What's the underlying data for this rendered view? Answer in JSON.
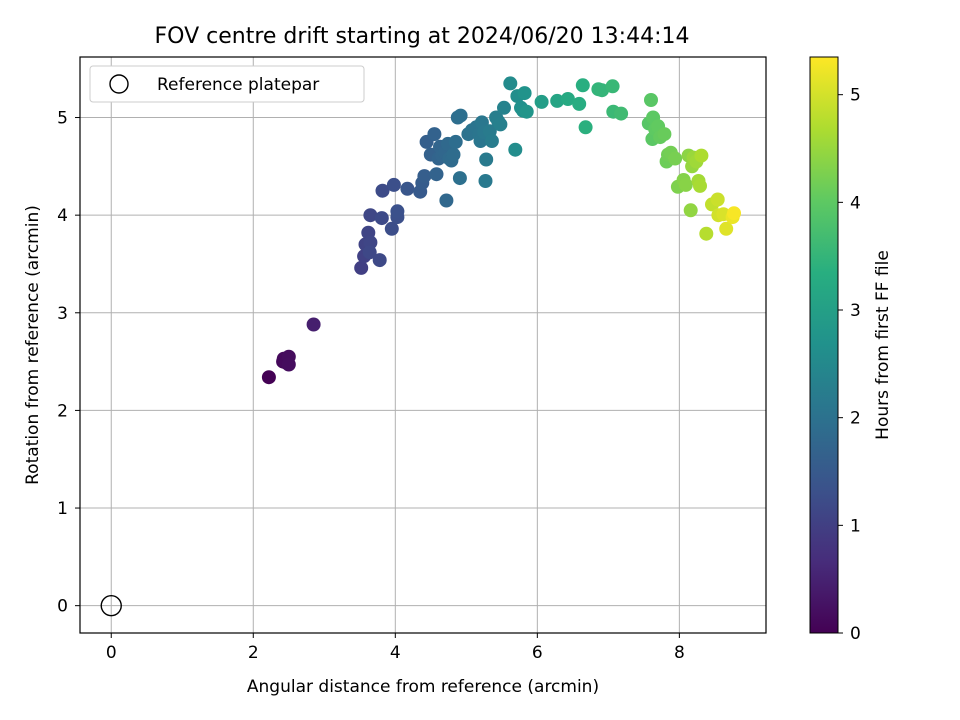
{
  "chart_data": {
    "type": "scatter",
    "title": "FOV centre drift starting at 2024/06/20 13:44:14",
    "xlabel": "Angular distance from reference (arcmin)",
    "ylabel": "Rotation from reference (arcmin)",
    "xlim": [
      -0.44,
      9.22
    ],
    "ylim": [
      -0.28,
      5.62
    ],
    "xticks": [
      0,
      2,
      4,
      6,
      8
    ],
    "yticks": [
      0,
      1,
      2,
      3,
      4,
      5
    ],
    "grid": true,
    "legend": {
      "placement": "top-left",
      "entries": [
        "Reference platepar"
      ]
    },
    "colorbar": {
      "label": "Hours from first FF file",
      "range": [
        0,
        5.35
      ],
      "ticks": [
        0,
        1,
        2,
        3,
        4,
        5
      ],
      "colormap": "viridis"
    },
    "reference": {
      "name": "Reference platepar",
      "x": 0,
      "y": 0,
      "marker": "open-circle"
    },
    "points": [
      [
        2.22,
        2.34,
        0.0
      ],
      [
        2.42,
        2.5,
        0.1
      ],
      [
        2.43,
        2.53,
        0.12
      ],
      [
        2.46,
        2.49,
        0.14
      ],
      [
        2.5,
        2.55,
        0.16
      ],
      [
        2.5,
        2.47,
        0.18
      ],
      [
        2.85,
        2.88,
        0.45
      ],
      [
        3.52,
        3.46,
        1.0
      ],
      [
        3.56,
        3.58,
        1.03
      ],
      [
        3.58,
        3.7,
        1.06
      ],
      [
        3.62,
        3.82,
        1.09
      ],
      [
        3.65,
        3.72,
        1.12
      ],
      [
        3.65,
        4.0,
        1.14
      ],
      [
        3.64,
        3.62,
        1.16
      ],
      [
        3.78,
        3.54,
        1.18
      ],
      [
        3.81,
        3.97,
        1.2
      ],
      [
        3.82,
        4.25,
        1.22
      ],
      [
        3.95,
        3.86,
        1.26
      ],
      [
        3.98,
        4.31,
        1.28
      ],
      [
        4.03,
        3.98,
        1.3
      ],
      [
        4.03,
        4.04,
        1.32
      ],
      [
        4.17,
        4.27,
        1.42
      ],
      [
        4.35,
        4.24,
        1.5
      ],
      [
        4.38,
        4.33,
        1.55
      ],
      [
        4.41,
        4.4,
        1.58
      ],
      [
        4.44,
        4.75,
        1.6
      ],
      [
        4.5,
        4.62,
        1.65
      ],
      [
        4.55,
        4.83,
        1.68
      ],
      [
        4.58,
        4.42,
        1.7
      ],
      [
        4.61,
        4.58,
        1.72
      ],
      [
        4.63,
        4.7,
        1.74
      ],
      [
        4.66,
        4.61,
        1.76
      ],
      [
        4.7,
        4.64,
        1.78
      ],
      [
        4.72,
        4.15,
        1.8
      ],
      [
        4.74,
        4.73,
        1.82
      ],
      [
        4.76,
        4.58,
        1.84
      ],
      [
        4.79,
        4.56,
        1.86
      ],
      [
        4.82,
        4.62,
        1.88
      ],
      [
        4.85,
        4.75,
        1.9
      ],
      [
        4.88,
        5.0,
        1.93
      ],
      [
        4.92,
        5.02,
        1.95
      ],
      [
        4.91,
        4.38,
        1.97
      ],
      [
        5.03,
        4.83,
        2.0
      ],
      [
        5.08,
        4.87,
        2.03
      ],
      [
        5.14,
        4.9,
        2.06
      ],
      [
        5.18,
        4.83,
        2.08
      ],
      [
        5.2,
        4.76,
        2.1
      ],
      [
        5.22,
        4.95,
        2.12
      ],
      [
        5.25,
        4.85,
        2.14
      ],
      [
        5.27,
        4.35,
        2.16
      ],
      [
        5.28,
        4.57,
        2.18
      ],
      [
        5.33,
        4.86,
        2.2
      ],
      [
        5.36,
        4.76,
        2.22
      ],
      [
        5.42,
        5.0,
        2.26
      ],
      [
        5.45,
        4.96,
        2.28
      ],
      [
        5.48,
        4.93,
        2.3
      ],
      [
        5.53,
        5.1,
        2.36
      ],
      [
        5.62,
        5.35,
        2.55
      ],
      [
        5.69,
        4.67,
        2.58
      ],
      [
        5.72,
        5.22,
        2.62
      ],
      [
        5.77,
        5.1,
        2.65
      ],
      [
        5.8,
        5.07,
        2.68
      ],
      [
        5.82,
        5.25,
        2.72
      ],
      [
        5.85,
        5.06,
        2.76
      ],
      [
        6.06,
        5.16,
        2.95
      ],
      [
        6.28,
        5.17,
        3.12
      ],
      [
        6.43,
        5.19,
        3.22
      ],
      [
        6.59,
        5.14,
        3.3
      ],
      [
        6.64,
        5.33,
        3.35
      ],
      [
        6.68,
        4.9,
        3.38
      ],
      [
        6.86,
        5.29,
        3.48
      ],
      [
        6.91,
        5.28,
        3.5
      ],
      [
        7.06,
        5.32,
        3.56
      ],
      [
        7.07,
        5.06,
        3.58
      ],
      [
        7.18,
        5.04,
        3.65
      ],
      [
        7.57,
        4.94,
        3.92
      ],
      [
        7.6,
        5.18,
        3.95
      ],
      [
        7.62,
        4.78,
        3.97
      ],
      [
        7.63,
        5.0,
        3.99
      ],
      [
        7.66,
        4.88,
        4.01
      ],
      [
        7.7,
        4.91,
        4.04
      ],
      [
        7.73,
        4.8,
        4.06
      ],
      [
        7.79,
        4.83,
        4.1
      ],
      [
        7.82,
        4.55,
        4.14
      ],
      [
        7.84,
        4.62,
        4.17
      ],
      [
        7.88,
        4.64,
        4.2
      ],
      [
        7.94,
        4.58,
        4.23
      ],
      [
        7.98,
        4.29,
        4.28
      ],
      [
        8.06,
        4.36,
        4.34
      ],
      [
        8.09,
        4.31,
        4.37
      ],
      [
        8.13,
        4.61,
        4.4
      ],
      [
        8.16,
        4.05,
        4.44
      ],
      [
        8.18,
        4.5,
        4.48
      ],
      [
        8.2,
        4.59,
        4.52
      ],
      [
        8.24,
        4.55,
        4.56
      ],
      [
        8.27,
        4.35,
        4.6
      ],
      [
        8.29,
        4.3,
        4.64
      ],
      [
        8.31,
        4.61,
        4.68
      ],
      [
        8.38,
        3.81,
        4.76
      ],
      [
        8.46,
        4.11,
        4.85
      ],
      [
        8.54,
        4.16,
        4.92
      ],
      [
        8.55,
        4.0,
        4.98
      ],
      [
        8.62,
        4.01,
        5.05
      ],
      [
        8.66,
        3.86,
        5.1
      ],
      [
        8.75,
        3.98,
        5.2
      ],
      [
        8.77,
        4.02,
        5.3
      ]
    ]
  }
}
